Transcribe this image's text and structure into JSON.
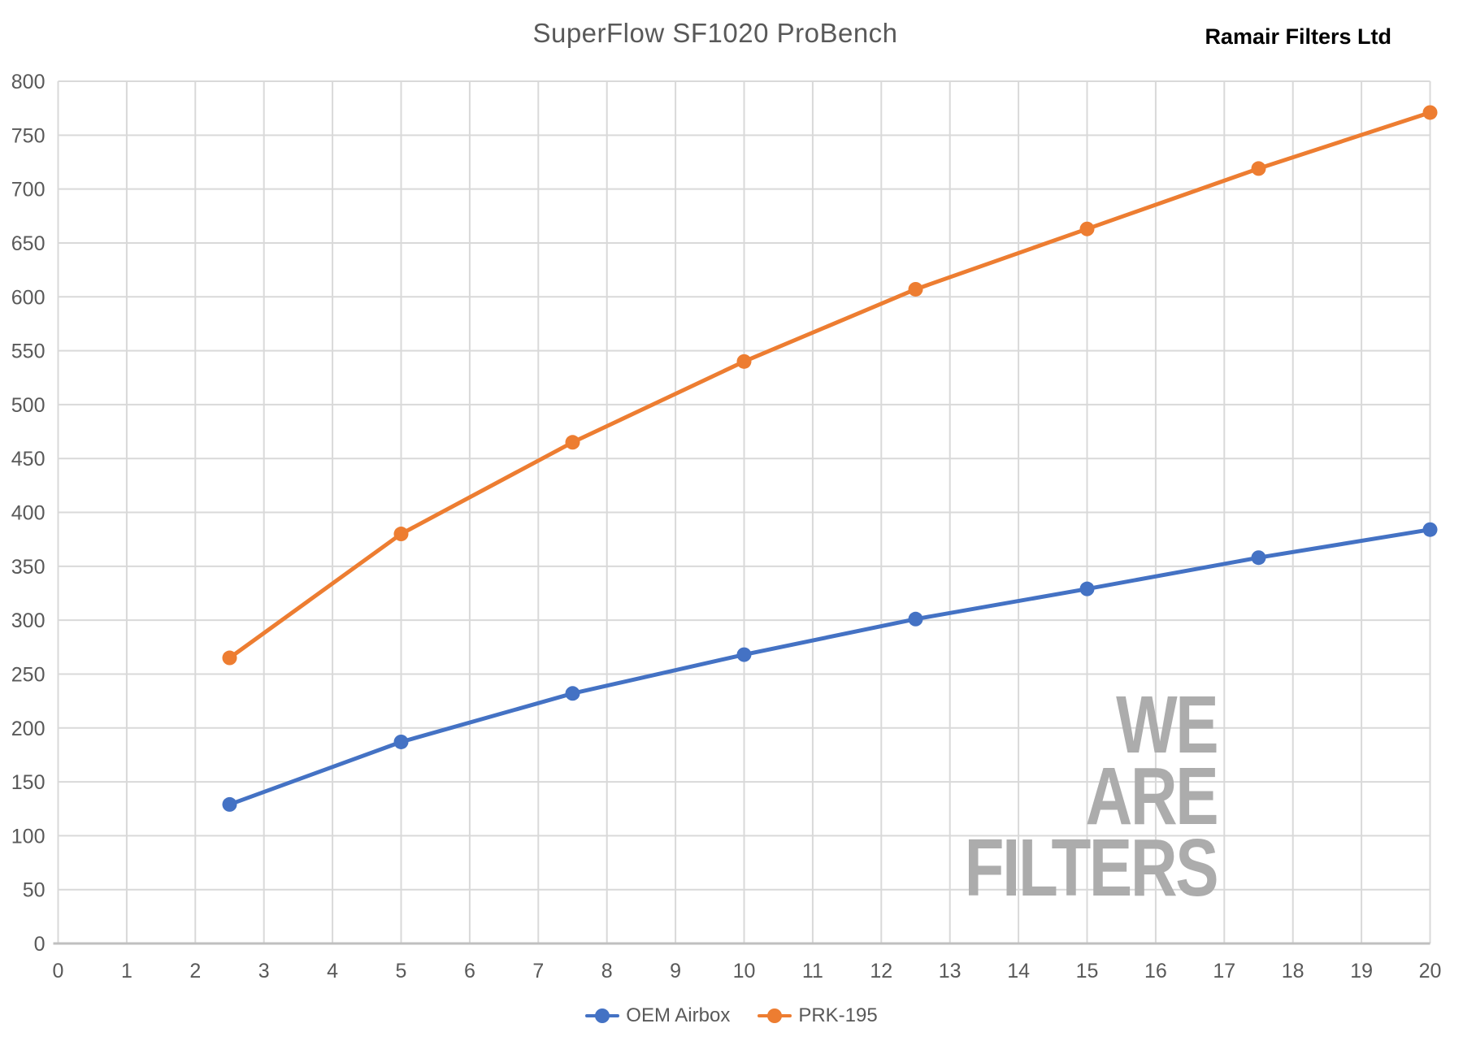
{
  "header": {
    "title": "SuperFlow SF1020 ProBench",
    "company": "Ramair Filters Ltd"
  },
  "watermark": {
    "lines": [
      "WE",
      "ARE",
      "FILTERS"
    ],
    "color": "#ACACAC"
  },
  "chart_data": {
    "type": "line",
    "title": "SuperFlow SF1020 ProBench",
    "xlabel": "",
    "ylabel": "",
    "x": [
      2.5,
      5,
      7.5,
      10,
      12.5,
      15,
      17.5,
      20
    ],
    "series": [
      {
        "name": "OEM Airbox",
        "color": "#4472C4",
        "values": [
          129,
          187,
          232,
          268,
          301,
          329,
          358,
          384
        ]
      },
      {
        "name": "PRK-195",
        "color": "#ED7D31",
        "values": [
          265,
          380,
          465,
          540,
          607,
          663,
          719,
          771
        ]
      }
    ],
    "xlim": [
      0,
      20
    ],
    "ylim": [
      0,
      800
    ],
    "x_ticks": [
      0,
      1,
      2,
      3,
      4,
      5,
      6,
      7,
      8,
      9,
      10,
      11,
      12,
      13,
      14,
      15,
      16,
      17,
      18,
      19,
      20
    ],
    "y_ticks": [
      0,
      50,
      100,
      150,
      200,
      250,
      300,
      350,
      400,
      450,
      500,
      550,
      600,
      650,
      700,
      750,
      800
    ],
    "grid": true,
    "legend_position": "bottom",
    "gridline_color": "#D9D9D9",
    "axis_line_color": "#BFBFBF",
    "tick_label_color": "#595959",
    "marker": "circle",
    "marker_radius": 9,
    "line_width": 5
  }
}
